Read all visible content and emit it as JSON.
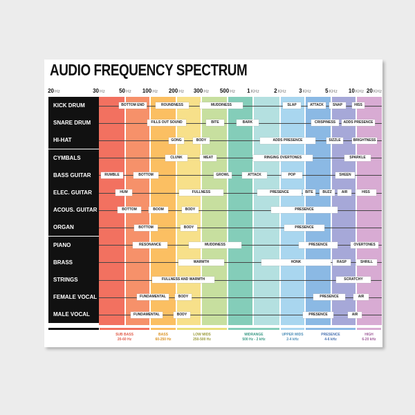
{
  "title": "AUDIO FREQUENCY SPECTRUM",
  "frequencies": [
    {
      "value": "20",
      "unit": "Hz"
    },
    {
      "value": "30",
      "unit": "Hz"
    },
    {
      "value": "50",
      "unit": "Hz"
    },
    {
      "value": "100",
      "unit": "Hz"
    },
    {
      "value": "200",
      "unit": "Hz"
    },
    {
      "value": "300",
      "unit": "Hz"
    },
    {
      "value": "500",
      "unit": "Hz"
    },
    {
      "value": "1",
      "unit": "KHz"
    },
    {
      "value": "2",
      "unit": "KHz"
    },
    {
      "value": "3",
      "unit": "KHz"
    },
    {
      "value": "5",
      "unit": "KHz"
    },
    {
      "value": "10",
      "unit": "KHz"
    },
    {
      "value": "20",
      "unit": "KHz"
    }
  ],
  "rows": [
    {
      "label": "KICK DRUM",
      "tags": [
        "BOTTOM END",
        "ROUNDNESS",
        "MUDDINESS",
        "SLAP",
        "ATTACK",
        "SNAP",
        "HISS"
      ]
    },
    {
      "label": "SNARE DRUM",
      "tags": [
        "FILLS OUT SOUND",
        "BITE",
        "BARK",
        "CRISPINESS",
        "ADDS PRESENCE"
      ]
    },
    {
      "label": "HI-HAT",
      "tags": [
        "GONG",
        "BODY",
        "ADDS PRESENCE",
        "SIZZLE",
        "BRIGHTNESS"
      ]
    },
    {
      "label": "CYMBALS",
      "tags": [
        "CLUNK",
        "MEAT",
        "RINGING OVERTONES",
        "SPARKLE"
      ]
    },
    {
      "label": "BASS GUITAR",
      "tags": [
        "RUMBLE",
        "BOTTOM",
        "GROWL",
        "ATTACK",
        "POP",
        "SHEEN"
      ]
    },
    {
      "label": "ELEC. GUITAR",
      "tags": [
        "HUM",
        "FULLNESS",
        "PRESENCE",
        "BITE",
        "BUZZ",
        "AIR",
        "HISS"
      ]
    },
    {
      "label": "ACOUS. GUITAR",
      "tags": [
        "BOTTOM",
        "BOOM",
        "BODY",
        "PRESENCE"
      ]
    },
    {
      "label": "ORGAN",
      "tags": [
        "BOTTOM",
        "BODY",
        "PRESENCE"
      ]
    },
    {
      "label": "PIANO",
      "tags": [
        "RESONANCE",
        "MUDDINESS",
        "PRESENCE",
        "OVERTONES"
      ]
    },
    {
      "label": "BRASS",
      "tags": [
        "WARMTH",
        "HONK",
        "RASP",
        "SHRILL"
      ]
    },
    {
      "label": "STRINGS",
      "tags": [
        "FULLNESS AND WARMTH",
        "SCRATCHY"
      ]
    },
    {
      "label": "FEMALE VOCAL",
      "tags": [
        "FUNDAMENTAL",
        "BODY",
        "PRESENCE",
        "AIR"
      ]
    },
    {
      "label": "MALE VOCAL",
      "tags": [
        "FUNDAMENTAL",
        "BODY",
        "PRESENCE",
        "AIR"
      ]
    }
  ],
  "ranges": [
    {
      "name": "SUB BASS",
      "range": "20-60 Hz"
    },
    {
      "name": "BASS",
      "range": "60-250 Hz"
    },
    {
      "name": "LOW MIDS",
      "range": "250-500 Hz"
    },
    {
      "name": "MIDRANGE",
      "range": "500 Hz - 2 kHz"
    },
    {
      "name": "UPPER MIDS",
      "range": "2-4 kHz"
    },
    {
      "name": "PRESENCE",
      "range": "4-6 kHz"
    },
    {
      "name": "HIGH",
      "range": "6-20 kHz"
    }
  ]
}
